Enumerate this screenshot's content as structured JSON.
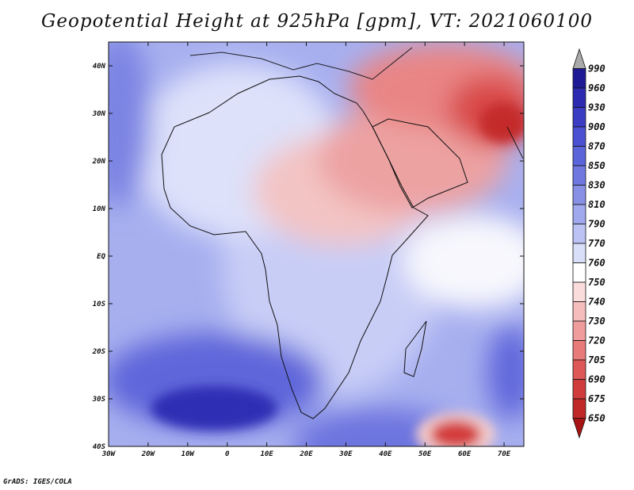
{
  "title": "Geopotential Height at 925hPa [gpm], VT: 2021060100",
  "footer": "GrADS: IGES/COLA",
  "map": {
    "region": "Africa",
    "lon_range": [
      -30,
      75
    ],
    "lat_range": [
      -40,
      45
    ]
  },
  "chart_data": {
    "type": "heatmap",
    "title": "Geopotential Height at 925hPa [gpm], VT: 2021060100",
    "variable": "Geopotential Height",
    "level": "925hPa",
    "units": "gpm",
    "valid_time": "2021060100",
    "x_ticks": [
      "30W",
      "20W",
      "10W",
      "0",
      "10E",
      "20E",
      "30E",
      "40E",
      "50E",
      "60E",
      "70E"
    ],
    "x_tick_values": [
      -30,
      -20,
      -10,
      0,
      10,
      20,
      30,
      40,
      50,
      60,
      70
    ],
    "y_ticks": [
      "40S",
      "30S",
      "20S",
      "10S",
      "EQ",
      "10N",
      "20N",
      "30N",
      "40N"
    ],
    "y_tick_values": [
      -40,
      -30,
      -20,
      -10,
      0,
      10,
      20,
      30,
      40
    ],
    "colorbar": {
      "levels": [
        990,
        960,
        930,
        900,
        870,
        850,
        830,
        810,
        790,
        770,
        760,
        750,
        740,
        730,
        720,
        705,
        690,
        675,
        650
      ],
      "colors": [
        "#aaaaaa",
        "#1e1a96",
        "#2c2ab0",
        "#3b3cc4",
        "#4b50d2",
        "#5c64da",
        "#7078e0",
        "#8890e6",
        "#a0a8ee",
        "#bcc2f4",
        "#dadff9",
        "#ffffff",
        "#fbdcdc",
        "#f6bdbd",
        "#f09c9c",
        "#e87a7a",
        "#de5858",
        "#d03c3c",
        "#c02828",
        "#a81414"
      ]
    }
  }
}
